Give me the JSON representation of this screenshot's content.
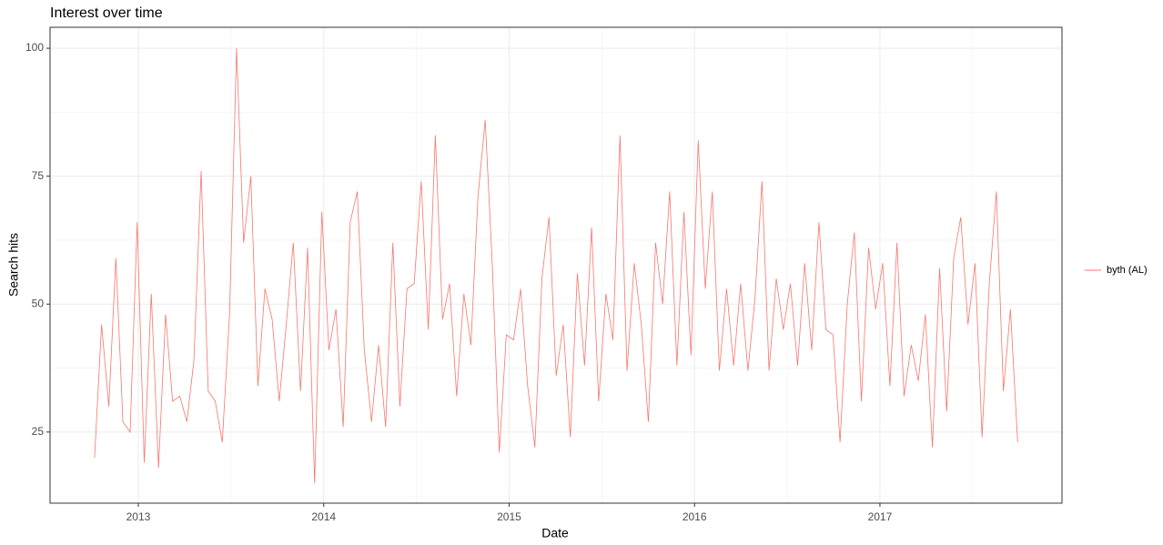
{
  "chart_data": {
    "type": "line",
    "title": "Interest over time",
    "x_label": "Date",
    "y_label": "Search hits",
    "xlim": [
      2012.524,
      2017.982
    ],
    "ylim": [
      11.1,
      104.1
    ],
    "xticks": [
      2013,
      2014,
      2015,
      2016,
      2017
    ],
    "yticks": [
      25,
      50,
      75,
      100
    ],
    "grid": true,
    "legend": "right",
    "x": [
      2012.764,
      2012.802,
      2012.841,
      2012.879,
      2012.917,
      2012.956,
      2012.994,
      2013.032,
      2013.07,
      2013.109,
      2013.147,
      2013.185,
      2013.224,
      2013.262,
      2013.3,
      2013.339,
      2013.377,
      2013.415,
      2013.453,
      2013.492,
      2013.53,
      2013.568,
      2013.607,
      2013.645,
      2013.683,
      2013.722,
      2013.76,
      2013.798,
      2013.836,
      2013.875,
      2013.913,
      2013.951,
      2013.99,
      2014.028,
      2014.066,
      2014.105,
      2014.143,
      2014.181,
      2014.219,
      2014.258,
      2014.296,
      2014.334,
      2014.373,
      2014.411,
      2014.449,
      2014.488,
      2014.526,
      2014.564,
      2014.602,
      2014.641,
      2014.679,
      2014.717,
      2014.756,
      2014.794,
      2014.832,
      2014.871,
      2014.909,
      2014.947,
      2014.985,
      2015.024,
      2015.062,
      2015.1,
      2015.139,
      2015.177,
      2015.215,
      2015.254,
      2015.292,
      2015.33,
      2015.368,
      2015.407,
      2015.445,
      2015.483,
      2015.522,
      2015.56,
      2015.598,
      2015.636,
      2015.675,
      2015.713,
      2015.751,
      2015.79,
      2015.828,
      2015.866,
      2015.905,
      2015.943,
      2015.981,
      2016.02,
      2016.058,
      2016.096,
      2016.134,
      2016.173,
      2016.211,
      2016.249,
      2016.288,
      2016.326,
      2016.364,
      2016.402,
      2016.441,
      2016.479,
      2016.517,
      2016.556,
      2016.594,
      2016.632,
      2016.671,
      2016.709,
      2016.747,
      2016.785,
      2016.824,
      2016.862,
      2016.9,
      2016.939,
      2016.977,
      2017.015,
      2017.054,
      2017.092,
      2017.13,
      2017.169,
      2017.207,
      2017.245,
      2017.283,
      2017.322,
      2017.36,
      2017.398,
      2017.436,
      2017.475,
      2017.513,
      2017.551,
      2017.59,
      2017.628,
      2017.666,
      2017.704,
      2017.743
    ],
    "series": [
      {
        "name": "byth (AL)",
        "color": "#F8766D",
        "values": [
          20,
          46,
          30,
          59,
          27,
          25,
          66,
          19,
          52,
          18,
          48,
          31,
          32,
          27,
          39,
          76,
          33,
          31,
          23,
          48,
          100,
          62,
          75,
          34,
          53,
          47,
          31,
          46,
          62,
          33,
          61,
          15,
          68,
          41,
          49,
          26,
          66,
          72,
          41,
          27,
          42,
          26,
          62,
          30,
          53,
          54,
          74,
          45,
          83,
          47,
          54,
          32,
          52,
          42,
          71,
          86,
          58,
          21,
          44,
          43,
          53,
          34,
          22,
          55,
          67,
          36,
          46,
          24,
          56,
          38,
          65,
          31,
          52,
          43,
          83,
          37,
          58,
          46,
          27,
          62,
          50,
          72,
          38,
          68,
          40,
          82,
          53,
          72,
          37,
          53,
          38,
          54,
          37,
          51,
          74,
          37,
          55,
          45,
          54,
          38,
          58,
          41,
          66,
          45,
          44,
          23,
          50,
          64,
          31,
          61,
          49,
          58,
          34,
          62,
          32,
          42,
          35,
          48,
          22,
          57,
          29,
          59,
          67,
          46,
          58,
          24,
          54,
          72,
          33,
          49,
          23
        ]
      }
    ]
  }
}
